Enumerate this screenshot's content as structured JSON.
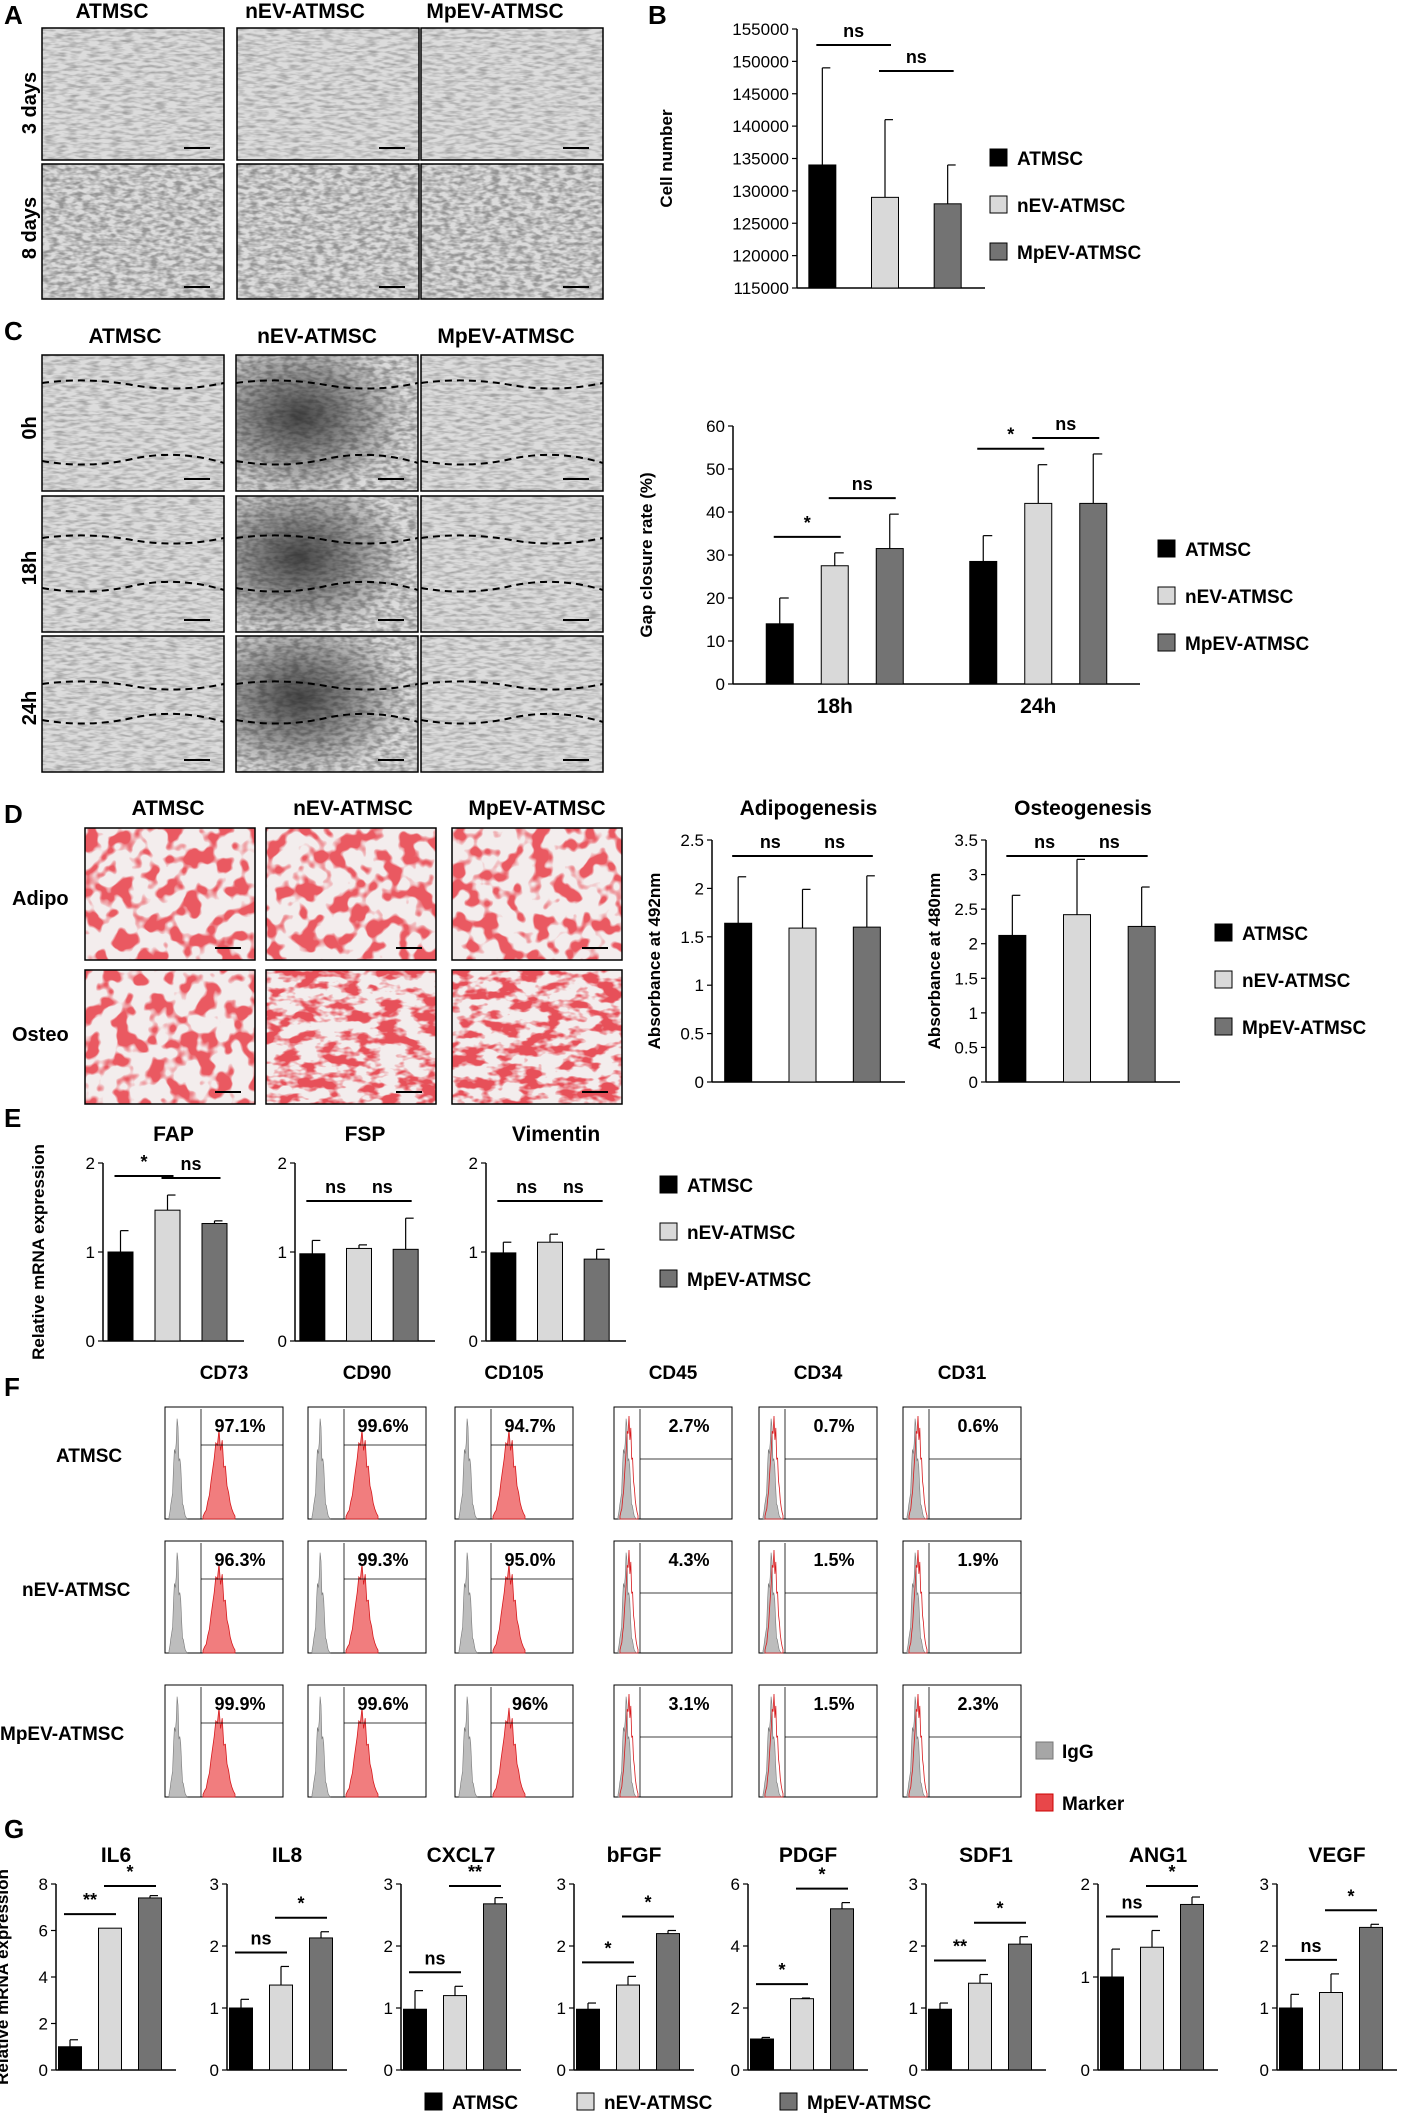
{
  "colors": {
    "ATMSC": "#000000",
    "nEV-ATMSC": "#d9d9d9",
    "MpEV-ATMSC": "#737373",
    "IgG": "#a6a6a6",
    "Marker": "#e8474a"
  },
  "groups": [
    "ATMSC",
    "nEV-ATMSC",
    "MpEV-ATMSC"
  ],
  "panelA": {
    "letter": "A",
    "cols": [
      "ATMSC",
      "nEV-ATMSC",
      "MpEV-ATMSC"
    ],
    "rows": [
      "3 days",
      "8 days"
    ]
  },
  "panelC": {
    "letter": "C",
    "cols": [
      "ATMSC",
      "nEV-ATMSC",
      "MpEV-ATMSC"
    ],
    "rows": [
      "0h",
      "18h",
      "24h"
    ]
  },
  "panelD": {
    "letter": "D",
    "cols": [
      "ATMSC",
      "nEV-ATMSC",
      "MpEV-ATMSC"
    ],
    "rows": [
      "Adipo",
      "Osteo"
    ]
  },
  "panelF": {
    "letter": "F",
    "markers": [
      "CD73",
      "CD90",
      "CD105",
      "CD45",
      "CD34",
      "CD31"
    ],
    "rows": [
      "ATMSC",
      "nEV-ATMSC",
      "MpEV-ATMSC"
    ],
    "percents": [
      [
        "97.1%",
        "99.6%",
        "94.7%",
        "2.7%",
        "0.7%",
        "0.6%"
      ],
      [
        "96.3%",
        "99.3%",
        "95.0%",
        "4.3%",
        "1.5%",
        "1.9%"
      ],
      [
        "99.9%",
        "99.6%",
        "96%",
        "3.1%",
        "1.5%",
        "2.3%"
      ]
    ],
    "legend": [
      "IgG",
      "Marker"
    ]
  },
  "panelG": {
    "letter": "G"
  },
  "chart_data": [
    {
      "id": "B",
      "type": "bar",
      "title": "",
      "ylabel": "Cell number",
      "ylim": [
        115000,
        155000
      ],
      "yticks": [
        115000,
        120000,
        125000,
        130000,
        135000,
        140000,
        145000,
        150000,
        155000
      ],
      "categories": [
        "ATMSC",
        "nEV-ATMSC",
        "MpEV-ATMSC"
      ],
      "values": [
        134000,
        129000,
        128000
      ],
      "errors": [
        15000,
        12000,
        6000
      ],
      "significance": [
        {
          "from": 0,
          "to": 1,
          "label": "ns"
        },
        {
          "from": 1,
          "to": 2,
          "label": "ns"
        }
      ],
      "legend": [
        "ATMSC",
        "nEV-ATMSC",
        "MpEV-ATMSC"
      ]
    },
    {
      "id": "C",
      "type": "bar",
      "title": "",
      "ylabel": "Gap closure rate (%)",
      "ylim": [
        0,
        60
      ],
      "yticks": [
        0,
        10,
        20,
        30,
        40,
        50,
        60
      ],
      "categories": [
        "18h",
        "24h"
      ],
      "series": [
        {
          "name": "ATMSC",
          "values": [
            14,
            28.5
          ],
          "errors": [
            6,
            6
          ]
        },
        {
          "name": "nEV-ATMSC",
          "values": [
            27.5,
            42
          ],
          "errors": [
            3,
            9
          ]
        },
        {
          "name": "MpEV-ATMSC",
          "values": [
            31.5,
            42
          ],
          "errors": [
            8,
            11.5
          ]
        }
      ],
      "significance": [
        {
          "category": 0,
          "from": 0,
          "to": 1,
          "label": "*"
        },
        {
          "category": 0,
          "from": 1,
          "to": 2,
          "label": "ns"
        },
        {
          "category": 1,
          "from": 0,
          "to": 1,
          "label": "*"
        },
        {
          "category": 1,
          "from": 1,
          "to": 2,
          "label": "ns"
        }
      ],
      "legend": [
        "ATMSC",
        "nEV-ATMSC",
        "MpEV-ATMSC"
      ]
    },
    {
      "id": "D1",
      "type": "bar",
      "title": "Adipogenesis",
      "ylabel": "Absorbance at 492nm",
      "ylim": [
        0,
        2.5
      ],
      "yticks": [
        0,
        0.5,
        1,
        1.5,
        2,
        2.5
      ],
      "categories": [
        "ATMSC",
        "nEV-ATMSC",
        "MpEV-ATMSC"
      ],
      "values": [
        1.64,
        1.59,
        1.6
      ],
      "errors": [
        0.48,
        0.4,
        0.53
      ],
      "significance": [
        {
          "from": 0,
          "to": 1,
          "label": "ns"
        },
        {
          "from": 1,
          "to": 2,
          "label": "ns"
        }
      ]
    },
    {
      "id": "D2",
      "type": "bar",
      "title": "Osteogenesis",
      "ylabel": "Absorbance at 480nm",
      "ylim": [
        0,
        3.5
      ],
      "yticks": [
        0,
        0.5,
        1,
        1.5,
        2,
        2.5,
        3,
        3.5
      ],
      "categories": [
        "ATMSC",
        "nEV-ATMSC",
        "MpEV-ATMSC"
      ],
      "values": [
        2.12,
        2.42,
        2.25
      ],
      "errors": [
        0.58,
        0.8,
        0.57
      ],
      "significance": [
        {
          "from": 0,
          "to": 1,
          "label": "ns"
        },
        {
          "from": 1,
          "to": 2,
          "label": "ns"
        }
      ],
      "legend": [
        "ATMSC",
        "nEV-ATMSC",
        "MpEV-ATMSC"
      ]
    },
    {
      "id": "E1",
      "type": "bar",
      "title": "FAP",
      "ylabel": "Relative mRNA expression",
      "ylim": [
        0,
        2
      ],
      "yticks": [
        0,
        1,
        2
      ],
      "categories": [
        "ATMSC",
        "nEV-ATMSC",
        "MpEV-ATMSC"
      ],
      "values": [
        1.0,
        1.47,
        1.32
      ],
      "errors": [
        0.24,
        0.17,
        0.03
      ],
      "significance": [
        {
          "from": 0,
          "to": 1,
          "label": "*"
        },
        {
          "from": 1,
          "to": 2,
          "label": "ns"
        }
      ]
    },
    {
      "id": "E2",
      "type": "bar",
      "title": "FSP",
      "ylim": [
        0,
        2
      ],
      "yticks": [
        0,
        1,
        2
      ],
      "categories": [
        "ATMSC",
        "nEV-ATMSC",
        "MpEV-ATMSC"
      ],
      "values": [
        0.98,
        1.04,
        1.03
      ],
      "errors": [
        0.15,
        0.04,
        0.35
      ],
      "significance": [
        {
          "from": 0,
          "to": 1,
          "label": "ns"
        },
        {
          "from": 1,
          "to": 2,
          "label": "ns"
        }
      ]
    },
    {
      "id": "E3",
      "type": "bar",
      "title": "Vimentin",
      "ylim": [
        0,
        2
      ],
      "yticks": [
        0,
        1,
        2
      ],
      "categories": [
        "ATMSC",
        "nEV-ATMSC",
        "MpEV-ATMSC"
      ],
      "values": [
        0.99,
        1.11,
        0.92
      ],
      "errors": [
        0.12,
        0.09,
        0.11
      ],
      "significance": [
        {
          "from": 0,
          "to": 1,
          "label": "ns"
        },
        {
          "from": 1,
          "to": 2,
          "label": "ns"
        }
      ],
      "legend": [
        "ATMSC",
        "nEV-ATMSC",
        "MpEV-ATMSC"
      ]
    },
    {
      "id": "G1",
      "type": "bar",
      "title": "IL6",
      "ylabel": "Relative mRNA expression",
      "ylim": [
        0,
        8
      ],
      "yticks": [
        0,
        2,
        4,
        6,
        8
      ],
      "categories": [
        "ATMSC",
        "nEV-ATMSC",
        "MpEV-ATMSC"
      ],
      "values": [
        1.0,
        6.1,
        7.4
      ],
      "errors": [
        0.3,
        0.0,
        0.1
      ],
      "significance": [
        {
          "from": 0,
          "to": 1,
          "label": "**"
        },
        {
          "from": 1,
          "to": 2,
          "label": "*"
        }
      ]
    },
    {
      "id": "G2",
      "type": "bar",
      "title": "IL8",
      "ylim": [
        0,
        3
      ],
      "yticks": [
        0,
        1,
        2,
        3
      ],
      "categories": [
        "ATMSC",
        "nEV-ATMSC",
        "MpEV-ATMSC"
      ],
      "values": [
        1.0,
        1.37,
        2.13
      ],
      "errors": [
        0.14,
        0.3,
        0.1
      ],
      "significance": [
        {
          "from": 0,
          "to": 1,
          "label": "ns"
        },
        {
          "from": 1,
          "to": 2,
          "label": "*"
        }
      ]
    },
    {
      "id": "G3",
      "type": "bar",
      "title": "CXCL7",
      "ylim": [
        0,
        3
      ],
      "yticks": [
        0,
        1,
        2,
        3
      ],
      "categories": [
        "ATMSC",
        "nEV-ATMSC",
        "MpEV-ATMSC"
      ],
      "values": [
        0.98,
        1.2,
        2.68
      ],
      "errors": [
        0.3,
        0.15,
        0.1
      ],
      "significance": [
        {
          "from": 0,
          "to": 1,
          "label": "ns"
        },
        {
          "from": 1,
          "to": 2,
          "label": "**"
        }
      ]
    },
    {
      "id": "G4",
      "type": "bar",
      "title": "bFGF",
      "ylim": [
        0,
        3
      ],
      "yticks": [
        0,
        1,
        2,
        3
      ],
      "categories": [
        "ATMSC",
        "nEV-ATMSC",
        "MpEV-ATMSC"
      ],
      "values": [
        0.98,
        1.37,
        2.2
      ],
      "errors": [
        0.1,
        0.14,
        0.05
      ],
      "significance": [
        {
          "from": 0,
          "to": 1,
          "label": "*"
        },
        {
          "from": 1,
          "to": 2,
          "label": "*"
        }
      ]
    },
    {
      "id": "G5",
      "type": "bar",
      "title": "PDGF",
      "ylim": [
        0,
        6
      ],
      "yticks": [
        0,
        2,
        4,
        6
      ],
      "categories": [
        "ATMSC",
        "nEV-ATMSC",
        "MpEV-ATMSC"
      ],
      "values": [
        1.0,
        2.3,
        5.2
      ],
      "errors": [
        0.05,
        0.02,
        0.2
      ],
      "significance": [
        {
          "from": 0,
          "to": 1,
          "label": "*"
        },
        {
          "from": 1,
          "to": 2,
          "label": "*"
        }
      ]
    },
    {
      "id": "G6",
      "type": "bar",
      "title": "SDF1",
      "ylim": [
        0,
        3
      ],
      "yticks": [
        0,
        1,
        2,
        3
      ],
      "categories": [
        "ATMSC",
        "nEV-ATMSC",
        "MpEV-ATMSC"
      ],
      "values": [
        0.98,
        1.4,
        2.03
      ],
      "errors": [
        0.1,
        0.14,
        0.12
      ],
      "significance": [
        {
          "from": 0,
          "to": 1,
          "label": "**"
        },
        {
          "from": 1,
          "to": 2,
          "label": "*"
        }
      ]
    },
    {
      "id": "G7",
      "type": "bar",
      "title": "ANG1",
      "ylim": [
        0,
        2
      ],
      "yticks": [
        0,
        1,
        2
      ],
      "categories": [
        "ATMSC",
        "nEV-ATMSC",
        "MpEV-ATMSC"
      ],
      "values": [
        1.0,
        1.32,
        1.78
      ],
      "errors": [
        0.3,
        0.18,
        0.08
      ],
      "significance": [
        {
          "from": 0,
          "to": 1,
          "label": "ns"
        },
        {
          "from": 1,
          "to": 2,
          "label": "*"
        }
      ]
    },
    {
      "id": "G8",
      "type": "bar",
      "title": "VEGF",
      "ylim": [
        0,
        3
      ],
      "yticks": [
        0,
        1,
        2,
        3
      ],
      "categories": [
        "ATMSC",
        "nEV-ATMSC",
        "MpEV-ATMSC"
      ],
      "values": [
        1.0,
        1.25,
        2.3
      ],
      "errors": [
        0.22,
        0.3,
        0.05
      ],
      "significance": [
        {
          "from": 0,
          "to": 1,
          "label": "ns"
        },
        {
          "from": 1,
          "to": 2,
          "label": "*"
        }
      ]
    }
  ],
  "bottom_legend": [
    "ATMSC",
    "nEV-ATMSC",
    "MpEV-ATMSC"
  ]
}
